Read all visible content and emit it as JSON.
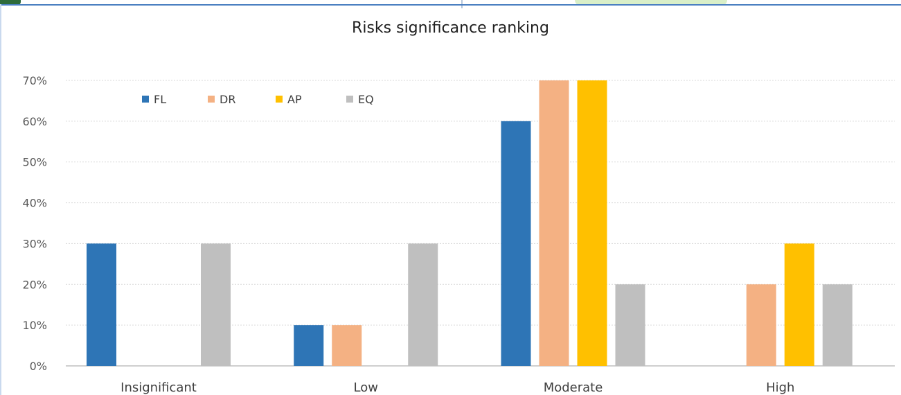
{
  "chart_data": {
    "type": "bar",
    "title": "Risks significance ranking",
    "xlabel": "",
    "ylabel": "",
    "categories": [
      "Insignificant",
      "Low",
      "Moderate",
      "High"
    ],
    "series": [
      {
        "name": "FL",
        "color": "#2e75b6",
        "values": [
          30,
          10,
          60,
          0
        ]
      },
      {
        "name": "DR",
        "color": "#f4b183",
        "values": [
          0,
          10,
          70,
          20
        ]
      },
      {
        "name": "AP",
        "color": "#ffc000",
        "values": [
          0,
          0,
          70,
          30
        ]
      },
      {
        "name": "EQ",
        "color": "#bfbfbf",
        "values": [
          30,
          30,
          20,
          20
        ]
      }
    ],
    "yticks": [
      "0%",
      "10%",
      "20%",
      "30%",
      "40%",
      "50%",
      "60%",
      "70%"
    ],
    "ylim": [
      0,
      70
    ],
    "y_unit": "%",
    "grid": true,
    "legend_position": "top-left"
  }
}
